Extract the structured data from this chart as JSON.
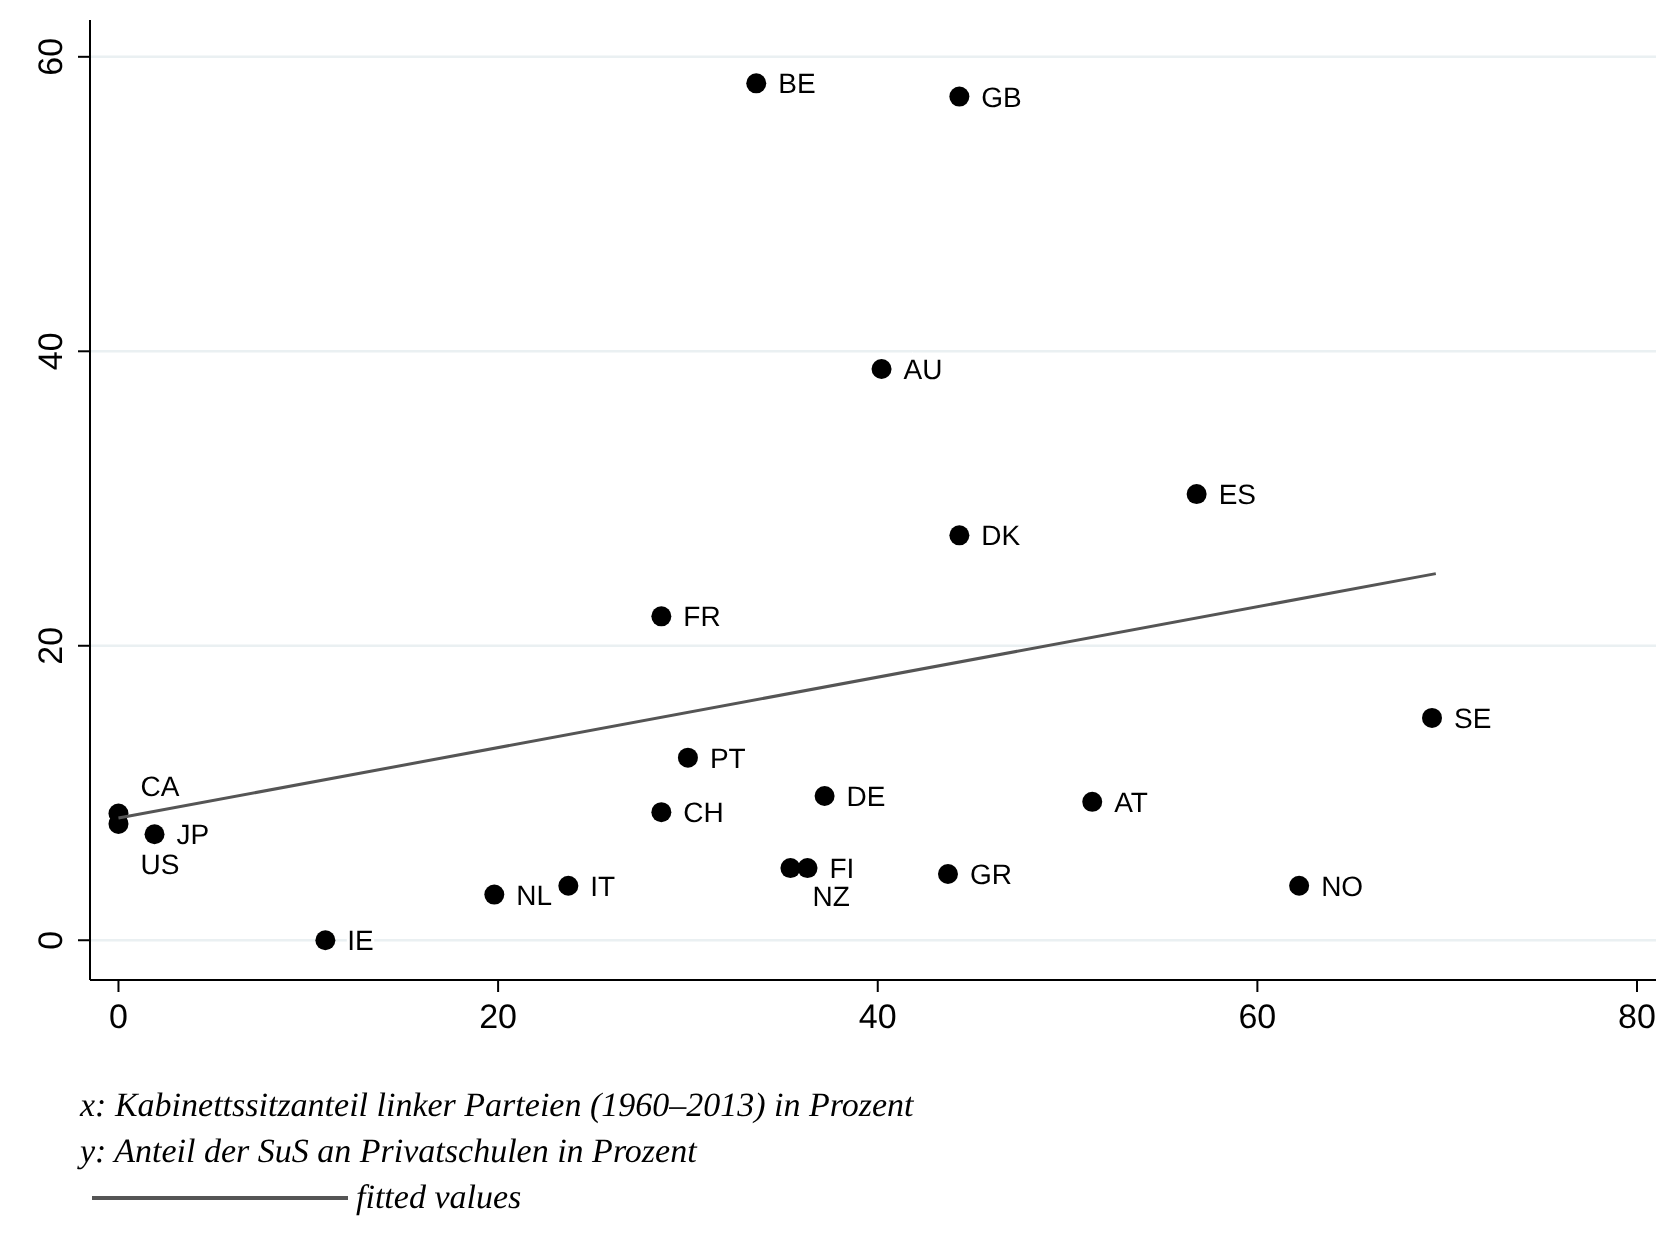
{
  "chart_data": {
    "type": "scatter",
    "xlim": [
      -1.5,
      81
    ],
    "ylim": [
      -2.7,
      62.5
    ],
    "xticks": [
      0,
      20,
      40,
      60,
      80
    ],
    "yticks": [
      0,
      20,
      40,
      60
    ],
    "grid": "y",
    "legend": "bottom",
    "series": [
      {
        "marker": "circle",
        "color": "#000000",
        "x": [
          33.6,
          44.3,
          40.2,
          56.8,
          44.3,
          28.6,
          69.2,
          30.0,
          37.2,
          51.3,
          28.6,
          0,
          0,
          1.9,
          35.4,
          36.3,
          43.7,
          62.2,
          19.8,
          23.7,
          10.9
        ],
        "values": [
          58.2,
          57.3,
          38.8,
          30.3,
          27.5,
          22.0,
          15.1,
          12.4,
          9.8,
          9.4,
          8.7,
          8.6,
          7.9,
          7.2,
          4.9,
          4.9,
          4.5,
          3.7,
          3.1,
          3.7,
          0
        ]
      },
      {
        "type": "line",
        "marker": "none",
        "name": "fitted values",
        "color": "#555555",
        "x": [
          0,
          69.4
        ],
        "values": [
          8.3,
          24.9
        ]
      }
    ],
    "annotations": [
      {
        "text": "BE",
        "x": 33.6,
        "y": 58.2
      },
      {
        "text": "GB",
        "x": 44.3,
        "y": 57.3
      },
      {
        "text": "AU",
        "x": 40.2,
        "y": 38.8
      },
      {
        "text": "ES",
        "x": 56.8,
        "y": 30.3
      },
      {
        "text": "DK",
        "x": 44.3,
        "y": 27.5
      },
      {
        "text": "FR",
        "x": 28.6,
        "y": 22.0
      },
      {
        "text": "SE",
        "x": 69.2,
        "y": 15.1
      },
      {
        "text": "PT",
        "x": 30.0,
        "y": 12.4
      },
      {
        "text": "DE",
        "x": 37.2,
        "y": 9.8
      },
      {
        "text": "AT",
        "x": 51.3,
        "y": 9.4
      },
      {
        "text": "CH",
        "x": 28.6,
        "y": 8.7
      },
      {
        "text": "CA",
        "x": 0,
        "y": 8.6
      },
      {
        "text": "US",
        "x": 0,
        "y": 7.9
      },
      {
        "text": "JP",
        "x": 1.9,
        "y": 7.2
      },
      {
        "text": "NZ",
        "x": 35.4,
        "y": 4.9
      },
      {
        "text": "FI",
        "x": 36.3,
        "y": 4.9
      },
      {
        "text": "GR",
        "x": 43.7,
        "y": 4.5
      },
      {
        "text": "NO",
        "x": 62.2,
        "y": 3.7
      },
      {
        "text": "NL",
        "x": 19.8,
        "y": 3.1
      },
      {
        "text": "IT",
        "x": 23.7,
        "y": 3.7
      },
      {
        "text": "IE",
        "x": 10.9,
        "y": 0
      },
      "x: Kabinettssitzanteil linker Parteien (1960–2013) in Prozent",
      "y: Anteil der SuS an Privatschulen in Prozent"
    ]
  }
}
